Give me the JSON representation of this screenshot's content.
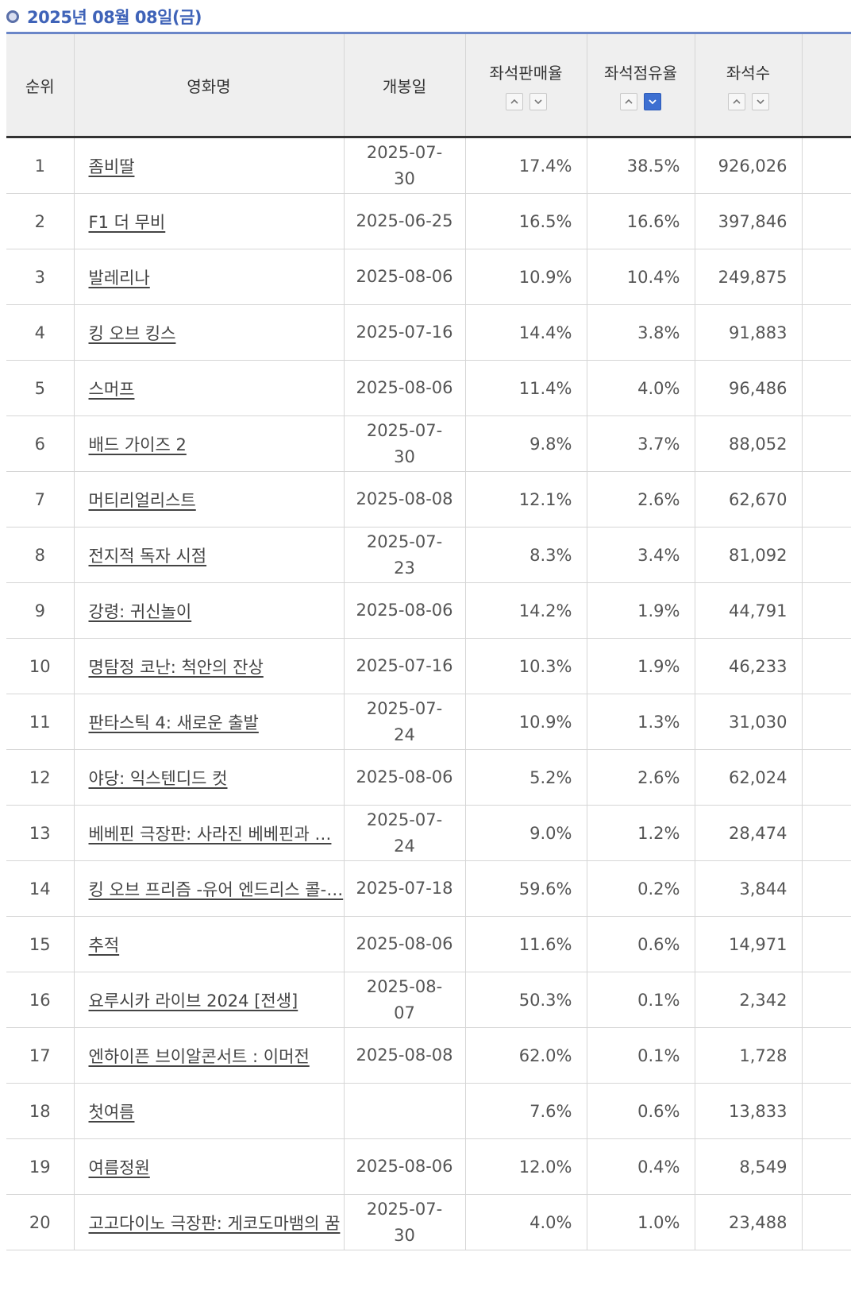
{
  "header": {
    "date": "2025년 08월 08일(금)"
  },
  "columns": {
    "rank": "순위",
    "title": "영화명",
    "open_date": "개봉일",
    "seat_sales_rate": "좌석판매율",
    "seat_share": "좌석점유율",
    "seats": "좌석수"
  },
  "rows": [
    {
      "rank": "1",
      "title": "좀비딸",
      "date_line1": "2025-07-",
      "date_line2": "30",
      "sales": "17.4%",
      "share": "38.5%",
      "seats": "926,026"
    },
    {
      "rank": "2",
      "title": "F1 더 무비",
      "date_line1": "2025-06-25",
      "date_line2": "",
      "sales": "16.5%",
      "share": "16.6%",
      "seats": "397,846"
    },
    {
      "rank": "3",
      "title": "발레리나",
      "date_line1": "2025-08-06",
      "date_line2": "",
      "sales": "10.9%",
      "share": "10.4%",
      "seats": "249,875"
    },
    {
      "rank": "4",
      "title": "킹 오브 킹스",
      "date_line1": "2025-07-16",
      "date_line2": "",
      "sales": "14.4%",
      "share": "3.8%",
      "seats": "91,883"
    },
    {
      "rank": "5",
      "title": "스머프",
      "date_line1": "2025-08-06",
      "date_line2": "",
      "sales": "11.4%",
      "share": "4.0%",
      "seats": "96,486"
    },
    {
      "rank": "6",
      "title": "배드 가이즈 2",
      "date_line1": "2025-07-",
      "date_line2": "30",
      "sales": "9.8%",
      "share": "3.7%",
      "seats": "88,052"
    },
    {
      "rank": "7",
      "title": "머티리얼리스트",
      "date_line1": "2025-08-08",
      "date_line2": "",
      "sales": "12.1%",
      "share": "2.6%",
      "seats": "62,670"
    },
    {
      "rank": "8",
      "title": "전지적 독자 시점",
      "date_line1": "2025-07-",
      "date_line2": "23",
      "sales": "8.3%",
      "share": "3.4%",
      "seats": "81,092"
    },
    {
      "rank": "9",
      "title": "강령: 귀신놀이",
      "date_line1": "2025-08-06",
      "date_line2": "",
      "sales": "14.2%",
      "share": "1.9%",
      "seats": "44,791"
    },
    {
      "rank": "10",
      "title": "명탐정 코난: 척안의 잔상",
      "date_line1": "2025-07-16",
      "date_line2": "",
      "sales": "10.3%",
      "share": "1.9%",
      "seats": "46,233"
    },
    {
      "rank": "11",
      "title": "판타스틱 4: 새로운 출발",
      "date_line1": "2025-07-",
      "date_line2": "24",
      "sales": "10.9%",
      "share": "1.3%",
      "seats": "31,030"
    },
    {
      "rank": "12",
      "title": "야당: 익스텐디드 컷",
      "date_line1": "2025-08-06",
      "date_line2": "",
      "sales": "5.2%",
      "share": "2.6%",
      "seats": "62,024"
    },
    {
      "rank": "13",
      "title": "베베핀 극장판: 사라진 베베핀과 …",
      "date_line1": "2025-07-",
      "date_line2": "24",
      "sales": "9.0%",
      "share": "1.2%",
      "seats": "28,474"
    },
    {
      "rank": "14",
      "title": "킹 오브 프리즘 -유어 엔드리스 콜-…",
      "date_line1": "2025-07-18",
      "date_line2": "",
      "sales": "59.6%",
      "share": "0.2%",
      "seats": "3,844"
    },
    {
      "rank": "15",
      "title": "추적",
      "date_line1": "2025-08-06",
      "date_line2": "",
      "sales": "11.6%",
      "share": "0.6%",
      "seats": "14,971"
    },
    {
      "rank": "16",
      "title": "요루시카 라이브 2024 [전생]",
      "date_line1": "2025-08-",
      "date_line2": "07",
      "sales": "50.3%",
      "share": "0.1%",
      "seats": "2,342"
    },
    {
      "rank": "17",
      "title": "엔하이픈 브이알콘서트 : 이머전",
      "date_line1": "2025-08-08",
      "date_line2": "",
      "sales": "62.0%",
      "share": "0.1%",
      "seats": "1,728"
    },
    {
      "rank": "18",
      "title": "첫여름",
      "date_line1": "",
      "date_line2": "",
      "sales": "7.6%",
      "share": "0.6%",
      "seats": "13,833"
    },
    {
      "rank": "19",
      "title": "여름정원",
      "date_line1": "2025-08-06",
      "date_line2": "",
      "sales": "12.0%",
      "share": "0.4%",
      "seats": "8,549"
    },
    {
      "rank": "20",
      "title": "고고다이노 극장판: 게코도마뱀의 꿈",
      "date_line1": "2025-07-",
      "date_line2": "30",
      "sales": "4.0%",
      "share": "1.0%",
      "seats": "23,488"
    }
  ],
  "colors": {
    "accent": "#3f63b8",
    "active_sort": "#3d6fd1",
    "header_bg": "#efefef"
  }
}
